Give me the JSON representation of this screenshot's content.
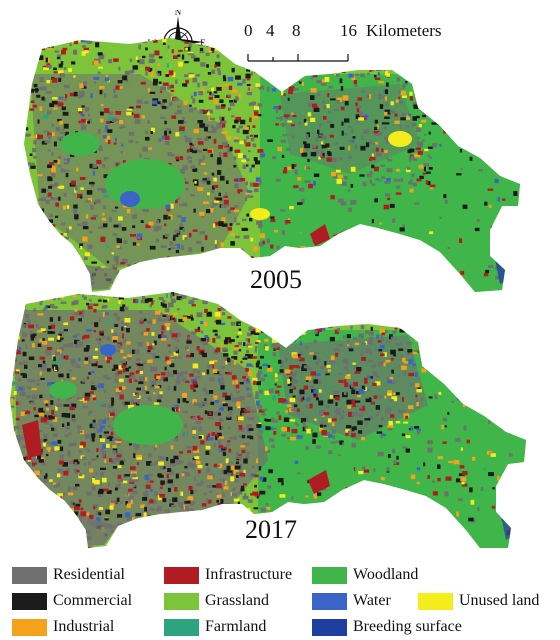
{
  "compass": {
    "n": "N",
    "s": "S",
    "e": "E",
    "w": "W"
  },
  "scale": {
    "ticks": [
      "0",
      "4",
      "8",
      "16"
    ],
    "unit": "Kilometers"
  },
  "maps": [
    {
      "year": "2005"
    },
    {
      "year": "2017"
    }
  ],
  "legend": [
    {
      "label": "Residential",
      "color": "#6f6f6f"
    },
    {
      "label": "Infrastructure",
      "color": "#b01c22"
    },
    {
      "label": "Woodland",
      "color": "#3fb54a"
    },
    {
      "label": "Commercial",
      "color": "#1b1b1b"
    },
    {
      "label": "Grassland",
      "color": "#7cc43a"
    },
    {
      "label": "Water",
      "color": "#3a64c8"
    },
    {
      "label": "Unused land",
      "color": "#f5ec1c"
    },
    {
      "label": "Industrial",
      "color": "#f4a21b"
    },
    {
      "label": "Farmland",
      "color": "#2ea37f"
    },
    {
      "label": "Breeding surface",
      "color": "#1f3fa0"
    }
  ]
}
